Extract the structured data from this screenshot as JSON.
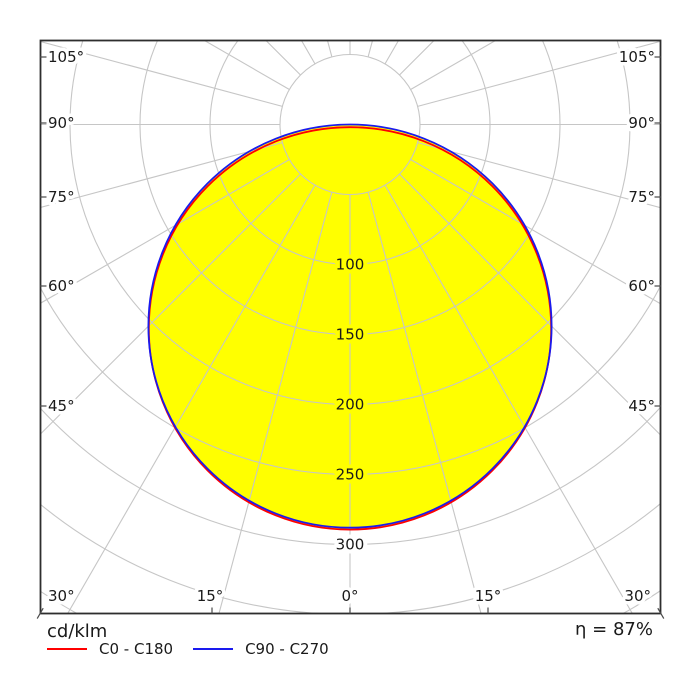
{
  "chart_data": {
    "type": "polar_photometric_intensity",
    "title": "",
    "units_label": "cd/klm",
    "efficiency_text": "η = 87%",
    "angle_step_deg": 15,
    "ring_step": 50,
    "ring_max_drawn": 400,
    "ring_labels": [
      {
        "value": 100,
        "label": "100"
      },
      {
        "value": 150,
        "label": "150"
      },
      {
        "value": 200,
        "label": "200"
      },
      {
        "value": 250,
        "label": "250"
      },
      {
        "value": 300,
        "label": "300"
      }
    ],
    "angle_labels": {
      "left": [
        "105°",
        "90°",
        "75°",
        "60°",
        "45°",
        "30°"
      ],
      "right": [
        "105°",
        "90°",
        "75°",
        "60°",
        "45°",
        "30°"
      ],
      "bottom": [
        "15°",
        "0°",
        "15°"
      ]
    },
    "series": [
      {
        "name": "C0 - C180",
        "color": "#ff0000",
        "angles_deg": [
          0,
          15,
          30,
          45,
          60,
          75,
          90
        ],
        "values_cd_per_klm": [
          289,
          279,
          250,
          204,
          145,
          75,
          2
        ]
      },
      {
        "name": "C90 - C270",
        "color": "#1a1aee",
        "angles_deg": [
          0,
          15,
          30,
          45,
          60,
          75,
          90
        ],
        "values_cd_per_klm": [
          288,
          278,
          249,
          204,
          145,
          76,
          4
        ]
      }
    ],
    "max_intensity_cd_per_klm": 289,
    "fill_color": "#ffff00",
    "grid_color": "#c6c6c6",
    "border_color": "#2e2e2e",
    "text_color": "#1a1a1a",
    "legend_position": "bottom-left",
    "grid": "polar, rings every 50 cd/klm, rays every 15°"
  },
  "legend": {
    "items": [
      {
        "label": "C0 - C180",
        "color": "#ff0000"
      },
      {
        "label": "C90 - C270",
        "color": "#1a1aee"
      }
    ]
  },
  "footer": {
    "units_label": "cd/klm",
    "efficiency": "η = 87%"
  }
}
